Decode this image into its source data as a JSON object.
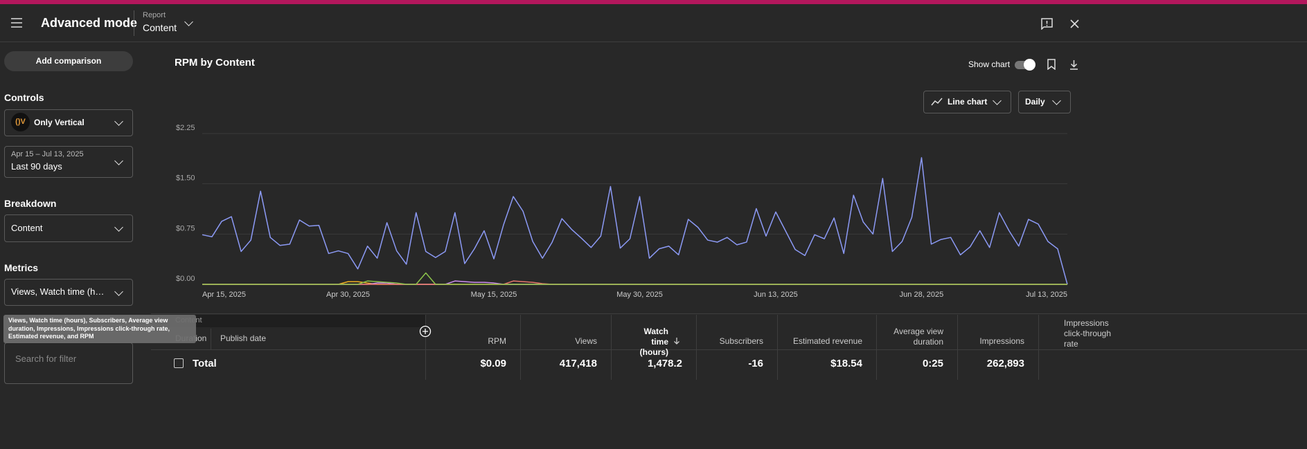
{
  "header": {
    "title": "Advanced mode",
    "report_label": "Report",
    "report_value": "Content"
  },
  "sidebar": {
    "add_comparison": "Add comparison",
    "controls": "Controls",
    "channel": "Only Vertical",
    "date_range": "Apr 15 – Jul 13, 2025",
    "date_preset": "Last 90 days",
    "breakdown_label": "Breakdown",
    "breakdown_value": "Content",
    "metrics_label": "Metrics",
    "metrics_value": "Views, Watch time (hours), Subscribers, Average view duration, Impressions, Impressions click-through rate, Estimated revenue, and RPM",
    "search_placeholder": "Search for filter"
  },
  "toolbar": {
    "show_chart": "Show chart",
    "chart_type": "Line chart",
    "interval": "Daily"
  },
  "chart_data": {
    "type": "line",
    "title": "RPM by Content",
    "categories": [
      "Apr 15, 2025",
      null,
      null,
      null,
      null,
      null,
      null,
      null,
      null,
      null,
      null,
      null,
      null,
      null,
      null,
      "Apr 30, 2025",
      null,
      null,
      null,
      null,
      null,
      null,
      null,
      null,
      null,
      null,
      null,
      null,
      null,
      null,
      "May 15, 2025",
      null,
      null,
      null,
      null,
      null,
      null,
      null,
      null,
      null,
      null,
      null,
      null,
      null,
      null,
      "May 30, 2025",
      null,
      null,
      null,
      null,
      null,
      null,
      null,
      null,
      null,
      null,
      null,
      null,
      null,
      "Jun 13, 2025",
      null,
      null,
      null,
      null,
      null,
      null,
      null,
      null,
      null,
      null,
      null,
      null,
      null,
      null,
      "Jun 28, 2025",
      null,
      null,
      null,
      null,
      null,
      null,
      null,
      null,
      null,
      null,
      null,
      null,
      null,
      null,
      "Jul 13, 2025"
    ],
    "series": [
      {
        "color": "#8c9af5",
        "values": [
          0.74,
          0.71,
          0.94,
          1.01,
          0.49,
          0.66,
          1.39,
          0.7,
          0.58,
          0.6,
          0.96,
          0.87,
          0.88,
          0.46,
          0.5,
          0.46,
          0.23,
          0.57,
          0.39,
          0.92,
          0.5,
          0.3,
          1.07,
          0.49,
          0.4,
          0.49,
          1.07,
          0.31,
          0.53,
          0.8,
          0.38,
          0.89,
          1.31,
          1.09,
          0.64,
          0.39,
          0.63,
          0.98,
          0.82,
          0.69,
          0.55,
          0.72,
          1.46,
          0.54,
          0.68,
          1.31,
          0.39,
          0.53,
          0.57,
          0.44,
          0.97,
          0.85,
          0.66,
          0.63,
          0.7,
          0.59,
          0.63,
          1.13,
          0.72,
          1.08,
          0.8,
          0.52,
          0.43,
          0.74,
          0.68,
          0.99,
          0.46,
          1.33,
          0.93,
          0.75,
          1.58,
          0.49,
          0.64,
          1.0,
          1.89,
          0.6,
          0.67,
          0.7,
          0.44,
          0.56,
          0.8,
          0.55,
          1.07,
          0.8,
          0.57,
          0.97,
          0.9,
          0.64,
          0.53,
          0.0
        ]
      },
      {
        "color": "#f2b01e",
        "values": [
          0,
          0,
          0,
          0,
          0,
          0,
          0,
          0,
          0,
          0,
          0,
          0,
          0,
          0,
          0,
          0.04,
          0.04,
          0.02,
          0,
          0,
          0,
          0,
          0,
          0,
          0,
          0,
          0,
          0,
          0,
          0,
          0,
          0,
          0,
          0,
          0,
          0,
          0,
          0,
          0,
          0,
          0,
          0,
          0,
          0,
          0,
          0,
          0,
          0,
          0,
          0,
          0,
          0,
          0,
          0,
          0,
          0,
          0,
          0,
          0,
          0,
          0,
          0,
          0,
          0,
          0,
          0,
          0,
          0,
          0,
          0,
          0,
          0,
          0,
          0,
          0,
          0,
          0,
          0,
          0,
          0,
          0,
          0,
          0,
          0,
          0,
          0,
          0,
          0,
          0,
          0
        ]
      },
      {
        "color": "#cf8ff0",
        "values": [
          0,
          0,
          0,
          0,
          0,
          0,
          0,
          0,
          0,
          0,
          0,
          0,
          0,
          0,
          0,
          0,
          0,
          0,
          0.02,
          0.02,
          0,
          0,
          0,
          0,
          0,
          0,
          0.05,
          0.04,
          0.03,
          0.03,
          0.02,
          0,
          0,
          0,
          0,
          0,
          0,
          0,
          0,
          0,
          0,
          0,
          0,
          0,
          0,
          0,
          0,
          0,
          0,
          0,
          0,
          0,
          0,
          0,
          0,
          0,
          0,
          0,
          0,
          0,
          0,
          0,
          0,
          0,
          0,
          0,
          0,
          0,
          0,
          0,
          0,
          0,
          0,
          0,
          0,
          0,
          0,
          0,
          0,
          0,
          0,
          0,
          0,
          0,
          0,
          0,
          0,
          0,
          0,
          0
        ]
      },
      {
        "color": "#e8766c",
        "values": [
          0,
          0,
          0,
          0,
          0,
          0,
          0,
          0,
          0,
          0,
          0,
          0,
          0,
          0,
          0,
          0,
          0,
          0,
          0,
          0,
          0,
          0,
          0,
          0,
          0,
          0,
          0,
          0,
          0,
          0,
          0,
          0,
          0.05,
          0.04,
          0.03,
          0.01,
          0,
          0,
          0,
          0,
          0,
          0,
          0,
          0,
          0,
          0,
          0,
          0,
          0,
          0,
          0,
          0,
          0,
          0,
          0,
          0,
          0,
          0,
          0,
          0,
          0,
          0,
          0,
          0,
          0,
          0,
          0,
          0,
          0,
          0,
          0,
          0,
          0,
          0,
          0,
          0,
          0,
          0,
          0,
          0,
          0,
          0,
          0,
          0,
          0,
          0,
          0,
          0,
          0,
          0
        ]
      },
      {
        "color": "#8bc34a",
        "values": [
          0,
          0,
          0,
          0,
          0,
          0,
          0,
          0,
          0,
          0,
          0,
          0,
          0,
          0,
          0,
          0,
          0,
          0.05,
          0.04,
          0.03,
          0.02,
          0,
          0,
          0.17,
          0,
          0,
          0,
          0,
          0,
          0,
          0,
          0,
          0,
          0,
          0,
          0,
          0,
          0,
          0,
          0,
          0,
          0,
          0,
          0,
          0,
          0,
          0,
          0,
          0,
          0,
          0,
          0,
          0,
          0,
          0,
          0,
          0,
          0,
          0,
          0,
          0,
          0,
          0,
          0,
          0,
          0,
          0,
          0,
          0,
          0,
          0,
          0,
          0,
          0,
          0,
          0,
          0,
          0,
          0,
          0,
          0,
          0,
          0,
          0,
          0,
          0,
          0,
          0,
          0,
          0
        ]
      }
    ],
    "ylim": [
      0,
      2.25
    ],
    "yticks": [
      {
        "value": 0,
        "label": "$0.00"
      },
      {
        "value": 0.75,
        "label": "$0.75"
      },
      {
        "value": 1.5,
        "label": "$1.50"
      },
      {
        "value": 2.25,
        "label": "$2.25"
      }
    ],
    "grid": true
  },
  "table": {
    "columns": [
      "Content",
      "Duration",
      "Publish date",
      "RPM",
      "Views",
      "Watch time (hours)",
      "Subscribers",
      "Estimated revenue",
      "Average view duration",
      "Impressions",
      "Impressions click-through rate"
    ],
    "total": {
      "label": "Total",
      "values": [
        "$0.09",
        "417,418",
        "1,478.2",
        "-16",
        "$18.54",
        "0:25",
        "262,893"
      ]
    }
  }
}
